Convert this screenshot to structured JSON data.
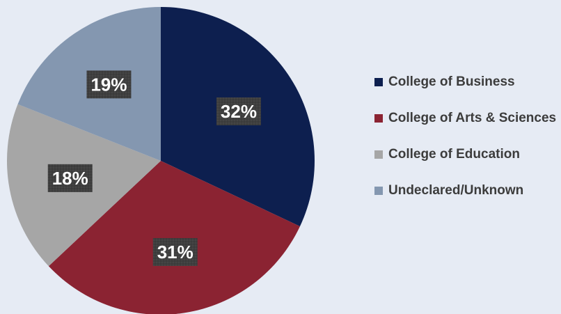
{
  "chart_data": {
    "type": "pie",
    "title": "",
    "legend_position": "right",
    "slices": [
      {
        "name": "College of Business",
        "value": 32,
        "label": "32%",
        "color": "#0d1f4f"
      },
      {
        "name": "College of Arts & Sciences",
        "value": 31,
        "label": "31%",
        "color": "#8b2332"
      },
      {
        "name": "College of Education",
        "value": 18,
        "label": "18%",
        "color": "#a6a6a6"
      },
      {
        "name": "Undeclared/Unknown",
        "value": 19,
        "label": "19%",
        "color": "#8497b0"
      }
    ]
  }
}
